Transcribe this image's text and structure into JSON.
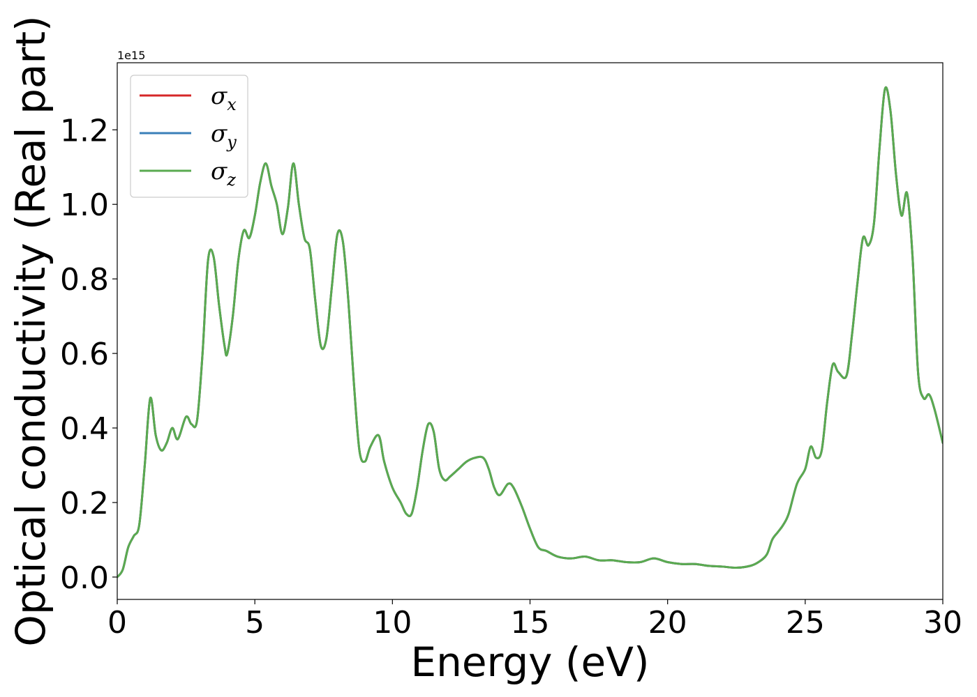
{
  "chart_data": {
    "type": "line",
    "xlabel": "Energy (eV)",
    "ylabel": "Optical conductivity (Real part)",
    "y_offset_label": "1e15",
    "xlim": [
      0,
      30
    ],
    "ylim": [
      -0.06,
      1.38
    ],
    "x_ticks": [
      0,
      5,
      10,
      15,
      20,
      25,
      30
    ],
    "x_tick_labels": [
      "0",
      "5",
      "10",
      "15",
      "20",
      "25",
      "30"
    ],
    "y_ticks": [
      0.0,
      0.2,
      0.4,
      0.6,
      0.8,
      1.0,
      1.2
    ],
    "y_tick_labels": [
      "0.0",
      "0.2",
      "0.4",
      "0.6",
      "0.8",
      "1.0",
      "1.2"
    ],
    "grid": false,
    "legend_position": "top-left",
    "series": [
      {
        "name": "σx",
        "color": "#d62728"
      },
      {
        "name": "σy",
        "color": "#3a7fb8"
      },
      {
        "name": "σz",
        "color": "#5aaa50"
      }
    ],
    "x": [
      0,
      0.2,
      0.4,
      0.6,
      0.8,
      1.0,
      1.2,
      1.4,
      1.6,
      1.8,
      2.0,
      2.2,
      2.5,
      2.7,
      2.9,
      3.1,
      3.3,
      3.5,
      3.7,
      3.9,
      4.0,
      4.2,
      4.4,
      4.6,
      4.8,
      5.0,
      5.2,
      5.4,
      5.6,
      5.8,
      6.0,
      6.2,
      6.4,
      6.6,
      6.8,
      7.0,
      7.2,
      7.4,
      7.6,
      7.8,
      8.0,
      8.2,
      8.4,
      8.6,
      8.8,
      9.0,
      9.2,
      9.5,
      9.7,
      10.0,
      10.3,
      10.5,
      10.7,
      10.9,
      11.1,
      11.3,
      11.5,
      11.7,
      11.9,
      12.1,
      12.4,
      12.7,
      13.0,
      13.3,
      13.5,
      13.7,
      13.9,
      14.2,
      14.4,
      14.7,
      15.0,
      15.3,
      15.6,
      16.0,
      16.5,
      17.0,
      17.5,
      18.0,
      18.5,
      19.0,
      19.5,
      20.0,
      20.5,
      21.0,
      21.5,
      22.0,
      22.5,
      23.0,
      23.3,
      23.6,
      23.8,
      24.0,
      24.2,
      24.4,
      24.7,
      25.0,
      25.2,
      25.4,
      25.6,
      25.8,
      26.0,
      26.2,
      26.5,
      26.7,
      26.9,
      27.1,
      27.3,
      27.5,
      27.7,
      27.9,
      28.1,
      28.3,
      28.5,
      28.7,
      28.9,
      29.1,
      29.3,
      29.5,
      29.7,
      30.0
    ],
    "y": [
      0.0,
      0.02,
      0.08,
      0.11,
      0.14,
      0.3,
      0.48,
      0.38,
      0.34,
      0.36,
      0.4,
      0.37,
      0.43,
      0.41,
      0.42,
      0.6,
      0.85,
      0.86,
      0.73,
      0.62,
      0.6,
      0.7,
      0.85,
      0.93,
      0.91,
      0.97,
      1.06,
      1.11,
      1.05,
      1.0,
      0.92,
      0.99,
      1.11,
      1.0,
      0.91,
      0.88,
      0.74,
      0.62,
      0.64,
      0.78,
      0.92,
      0.9,
      0.74,
      0.52,
      0.34,
      0.31,
      0.35,
      0.38,
      0.31,
      0.24,
      0.2,
      0.17,
      0.17,
      0.24,
      0.34,
      0.41,
      0.39,
      0.29,
      0.26,
      0.27,
      0.29,
      0.31,
      0.32,
      0.32,
      0.29,
      0.24,
      0.22,
      0.25,
      0.24,
      0.19,
      0.13,
      0.08,
      0.07,
      0.055,
      0.05,
      0.055,
      0.045,
      0.045,
      0.04,
      0.04,
      0.05,
      0.04,
      0.035,
      0.035,
      0.03,
      0.028,
      0.025,
      0.03,
      0.04,
      0.06,
      0.1,
      0.12,
      0.14,
      0.17,
      0.25,
      0.29,
      0.35,
      0.32,
      0.34,
      0.47,
      0.57,
      0.55,
      0.54,
      0.65,
      0.79,
      0.91,
      0.89,
      0.95,
      1.15,
      1.31,
      1.25,
      1.08,
      0.97,
      1.03,
      0.86,
      0.55,
      0.48,
      0.49,
      0.45,
      0.36
    ]
  }
}
